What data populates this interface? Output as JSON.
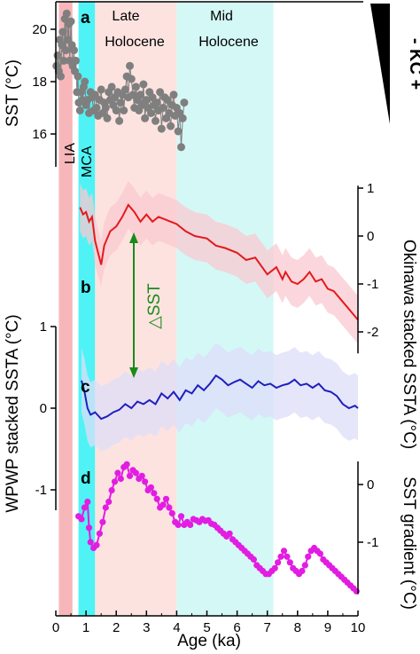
{
  "chart_data": {
    "type": "line",
    "x_axis": {
      "label": "Age (ka)",
      "range": [
        0,
        10
      ],
      "ticks": [
        0,
        1,
        2,
        3,
        4,
        5,
        6,
        7,
        8,
        9,
        10
      ]
    },
    "shaded_periods": [
      {
        "label": "LIA",
        "range": [
          0.1,
          0.55
        ],
        "color": "#f7b7ba"
      },
      {
        "label": "MCA",
        "range": [
          0.75,
          1.3
        ],
        "color": "#4ff3f6"
      },
      {
        "label": "Late Holocene",
        "range": [
          1.3,
          4.0
        ],
        "color": "#fde3e0"
      },
      {
        "label": "Mid Holocene",
        "range": [
          4.0,
          7.2
        ],
        "color": "#d4f8f6"
      }
    ],
    "period_labels": {
      "lia": "LIA",
      "mca": "MCA",
      "late_1": "Late",
      "late_2": "Holocene",
      "mid_1": "Mid",
      "mid_2": "Holocene"
    },
    "annotations": {
      "delta_sst": "△SST",
      "kc": "- KC +"
    },
    "panels": [
      {
        "id": "a",
        "label": "a",
        "type": "scatter",
        "ylabel": "SST (°C)",
        "ylim": [
          15,
          21
        ],
        "yticks": [
          16,
          18,
          20
        ],
        "color": "#7f7f7f",
        "x": [
          0.02,
          0.06,
          0.1,
          0.13,
          0.16,
          0.2,
          0.23,
          0.26,
          0.3,
          0.33,
          0.36,
          0.4,
          0.43,
          0.46,
          0.5,
          0.53,
          0.56,
          0.6,
          0.63,
          0.66,
          0.7,
          0.73,
          0.76,
          0.8,
          0.84,
          0.88,
          0.92,
          0.96,
          1.0,
          1.05,
          1.1,
          1.15,
          1.2,
          1.25,
          1.3,
          1.35,
          1.4,
          1.45,
          1.5,
          1.55,
          1.6,
          1.65,
          1.7,
          1.75,
          1.8,
          1.85,
          1.9,
          1.95,
          2.0,
          2.05,
          2.1,
          2.15,
          2.2,
          2.25,
          2.3,
          2.35,
          2.4,
          2.45,
          2.5,
          2.55,
          2.6,
          2.65,
          2.7,
          2.75,
          2.8,
          2.85,
          2.9,
          2.95,
          3.0,
          3.05,
          3.1,
          3.15,
          3.2,
          3.25,
          3.3,
          3.35,
          3.4,
          3.45,
          3.5,
          3.55,
          3.6,
          3.65,
          3.7,
          3.75,
          3.8,
          3.85,
          3.9,
          3.95,
          4.0,
          4.05,
          4.1,
          4.15,
          4.2,
          4.25
        ],
        "y": [
          18.6,
          19.0,
          18.4,
          19.6,
          18.2,
          19.4,
          19.9,
          18.8,
          20.4,
          19.2,
          20.6,
          19.6,
          20.2,
          18.8,
          20.3,
          19.4,
          18.6,
          19.2,
          18.4,
          18.8,
          17.6,
          18.2,
          17.2,
          16.9,
          17.6,
          17.3,
          17.8,
          18.0,
          17.1,
          17.3,
          16.8,
          17.6,
          17.4,
          16.9,
          17.5,
          17.0,
          16.7,
          17.3,
          17.7,
          16.8,
          17.2,
          17.0,
          16.6,
          17.6,
          17.3,
          17.8,
          17.1,
          17.4,
          16.9,
          17.6,
          16.5,
          17.2,
          17.5,
          16.9,
          17.7,
          18.2,
          17.4,
          18.6,
          18.1,
          17.5,
          17.0,
          17.8,
          17.3,
          16.9,
          17.5,
          17.1,
          17.9,
          16.6,
          17.3,
          17.0,
          17.6,
          16.8,
          17.4,
          17.1,
          16.5,
          17.2,
          16.9,
          17.6,
          16.2,
          17.0,
          17.4,
          16.6,
          17.3,
          16.8,
          16.3,
          17.1,
          17.5,
          16.7,
          17.0,
          16.1,
          16.8,
          15.5,
          16.6,
          17.2
        ]
      },
      {
        "id": "b",
        "label": "b",
        "type": "line",
        "ylabel": "Okinawa stacked SSTA (°C)",
        "ylim": [
          -2.45,
          1.05
        ],
        "yticks": [
          -2,
          -1,
          0,
          1
        ],
        "color": "#e41a1c",
        "band_color": "#f9cad2",
        "x": [
          0.8,
          0.9,
          1.0,
          1.1,
          1.2,
          1.3,
          1.4,
          1.5,
          1.6,
          1.8,
          2.0,
          2.2,
          2.4,
          2.6,
          2.8,
          3.0,
          3.2,
          3.4,
          3.6,
          3.8,
          4.0,
          4.3,
          4.6,
          5.0,
          5.3,
          5.6,
          6.0,
          6.3,
          6.6,
          7.0,
          7.3,
          7.5,
          7.6,
          7.8,
          8.0,
          8.2,
          8.4,
          8.6,
          8.8,
          9.0,
          9.2,
          9.4,
          9.6,
          9.8,
          10.0
        ],
        "y": [
          0.6,
          0.45,
          0.5,
          0.3,
          0.4,
          -0.1,
          -0.35,
          -0.6,
          -0.2,
          0.1,
          0.2,
          0.4,
          0.65,
          0.5,
          0.3,
          0.45,
          0.3,
          0.4,
          0.35,
          0.3,
          0.25,
          0.1,
          0.0,
          -0.05,
          -0.2,
          -0.25,
          -0.35,
          -0.5,
          -0.45,
          -0.8,
          -0.65,
          -0.9,
          -0.75,
          -0.95,
          -1.0,
          -0.9,
          -0.75,
          -0.95,
          -0.9,
          -1.1,
          -1.15,
          -1.3,
          -1.45,
          -1.6,
          -1.75
        ],
        "band_lower": [
          0.1,
          -0.05,
          0.0,
          -0.2,
          -0.1,
          -0.6,
          -0.85,
          -1.05,
          -0.7,
          -0.4,
          -0.3,
          -0.1,
          0.15,
          0.0,
          -0.2,
          -0.05,
          -0.2,
          -0.1,
          -0.15,
          -0.2,
          -0.25,
          -0.4,
          -0.5,
          -0.55,
          -0.7,
          -0.75,
          -0.85,
          -1.0,
          -0.95,
          -1.3,
          -1.15,
          -1.4,
          -1.25,
          -1.45,
          -1.5,
          -1.4,
          -1.25,
          -1.45,
          -1.4,
          -1.6,
          -1.65,
          -1.8,
          -1.95,
          -2.1,
          -2.25
        ],
        "band_upper": [
          1.1,
          0.95,
          1.0,
          0.8,
          0.9,
          0.4,
          0.15,
          -0.1,
          0.3,
          0.6,
          0.7,
          0.9,
          1.15,
          1.0,
          0.8,
          0.95,
          0.8,
          0.9,
          0.85,
          0.8,
          0.75,
          0.6,
          0.5,
          0.45,
          0.3,
          0.25,
          0.15,
          0.0,
          0.05,
          -0.3,
          -0.15,
          -0.4,
          -0.25,
          -0.45,
          -0.5,
          -0.4,
          -0.25,
          -0.45,
          -0.4,
          -0.6,
          -0.65,
          -0.8,
          -0.95,
          -1.1,
          -1.25
        ]
      },
      {
        "id": "c",
        "label": "c",
        "type": "line",
        "ylabel": "WPWP stacked SSTA (°C)",
        "ylim": [
          -1.25,
          1.0
        ],
        "yticks": [
          -1,
          0,
          1
        ],
        "color": "#1f1fbf",
        "band_color": "#ddddf8",
        "x": [
          0.85,
          0.95,
          1.05,
          1.15,
          1.3,
          1.5,
          1.7,
          1.9,
          2.1,
          2.3,
          2.5,
          2.7,
          2.9,
          3.1,
          3.3,
          3.5,
          3.7,
          3.9,
          4.1,
          4.3,
          4.5,
          4.7,
          4.9,
          5.1,
          5.3,
          5.5,
          5.7,
          5.9,
          6.1,
          6.3,
          6.5,
          6.7,
          6.9,
          7.1,
          7.3,
          7.5,
          7.7,
          7.9,
          8.1,
          8.3,
          8.5,
          8.7,
          8.9,
          9.1,
          9.3,
          9.5,
          9.7,
          9.9,
          10.0
        ],
        "y": [
          0.34,
          0.2,
          0.0,
          -0.08,
          -0.05,
          -0.13,
          -0.1,
          -0.05,
          -0.02,
          0.05,
          0.0,
          0.08,
          0.05,
          0.1,
          0.05,
          0.18,
          0.12,
          0.2,
          0.1,
          0.22,
          0.18,
          0.28,
          0.22,
          0.3,
          0.4,
          0.35,
          0.28,
          0.32,
          0.35,
          0.3,
          0.25,
          0.33,
          0.28,
          0.3,
          0.25,
          0.28,
          0.3,
          0.35,
          0.28,
          0.3,
          0.25,
          0.3,
          0.22,
          0.2,
          0.15,
          0.05,
          0.0,
          0.03,
          0.0
        ],
        "band_lower": [
          -0.06,
          -0.2,
          -0.4,
          -0.48,
          -0.45,
          -0.53,
          -0.5,
          -0.45,
          -0.42,
          -0.35,
          -0.4,
          -0.32,
          -0.35,
          -0.3,
          -0.35,
          -0.22,
          -0.28,
          -0.2,
          -0.3,
          -0.18,
          -0.22,
          -0.12,
          -0.18,
          -0.1,
          0.0,
          -0.05,
          -0.12,
          -0.08,
          -0.05,
          -0.1,
          -0.15,
          -0.07,
          -0.12,
          -0.1,
          -0.15,
          -0.12,
          -0.1,
          -0.05,
          -0.12,
          -0.1,
          -0.15,
          -0.1,
          -0.18,
          -0.2,
          -0.25,
          -0.35,
          -0.4,
          -0.37,
          -0.4
        ],
        "band_upper": [
          0.74,
          0.6,
          0.4,
          0.32,
          0.35,
          0.27,
          0.3,
          0.35,
          0.38,
          0.45,
          0.4,
          0.48,
          0.45,
          0.5,
          0.45,
          0.58,
          0.52,
          0.6,
          0.5,
          0.62,
          0.58,
          0.68,
          0.62,
          0.7,
          0.8,
          0.75,
          0.68,
          0.72,
          0.75,
          0.7,
          0.65,
          0.73,
          0.68,
          0.7,
          0.65,
          0.68,
          0.7,
          0.75,
          0.68,
          0.7,
          0.65,
          0.7,
          0.62,
          0.6,
          0.55,
          0.45,
          0.4,
          0.43,
          0.4
        ]
      },
      {
        "id": "d",
        "label": "d",
        "type": "line",
        "ylabel": "SST gradient (°C)",
        "ylim": [
          -1.9,
          0.4
        ],
        "yticks": [
          -1,
          0
        ],
        "color": "#e21de2",
        "x": [
          0.75,
          0.85,
          0.95,
          1.05,
          1.1,
          1.15,
          1.25,
          1.35,
          1.45,
          1.55,
          1.65,
          1.75,
          1.85,
          1.95,
          2.05,
          2.15,
          2.25,
          2.35,
          2.45,
          2.55,
          2.65,
          2.75,
          2.85,
          2.95,
          3.05,
          3.15,
          3.25,
          3.35,
          3.45,
          3.55,
          3.65,
          3.75,
          3.85,
          3.95,
          4.05,
          4.15,
          4.25,
          4.35,
          4.45,
          4.55,
          4.65,
          4.75,
          4.85,
          4.95,
          5.05,
          5.15,
          5.25,
          5.35,
          5.45,
          5.55,
          5.65,
          5.75,
          5.85,
          5.95,
          6.05,
          6.15,
          6.25,
          6.35,
          6.45,
          6.55,
          6.65,
          6.75,
          6.85,
          6.95,
          7.05,
          7.15,
          7.25,
          7.35,
          7.45,
          7.55,
          7.65,
          7.75,
          7.85,
          7.95,
          8.05,
          8.15,
          8.25,
          8.35,
          8.45,
          8.55,
          8.65,
          8.75,
          8.85,
          8.95,
          9.05,
          9.15,
          9.25,
          9.35,
          9.45,
          9.55,
          9.65,
          9.75,
          9.85,
          9.95
        ],
        "y": [
          -0.55,
          -0.6,
          -0.4,
          -0.3,
          -0.75,
          -1.0,
          -1.1,
          -1.05,
          -0.85,
          -0.65,
          -0.4,
          -0.3,
          -0.1,
          0.05,
          0.2,
          0.1,
          0.3,
          0.35,
          0.15,
          0.25,
          0.2,
          0.1,
          0.15,
          0.05,
          -0.1,
          -0.05,
          -0.15,
          -0.25,
          -0.4,
          -0.35,
          -0.25,
          -0.4,
          -0.5,
          -0.65,
          -0.7,
          -0.55,
          -0.7,
          -0.65,
          -0.7,
          -0.6,
          -0.62,
          -0.65,
          -0.6,
          -0.63,
          -0.62,
          -0.68,
          -0.7,
          -0.75,
          -0.8,
          -0.85,
          -0.9,
          -0.85,
          -0.95,
          -1.0,
          -1.05,
          -1.1,
          -1.15,
          -1.2,
          -1.25,
          -1.3,
          -1.4,
          -1.45,
          -1.5,
          -1.55,
          -1.55,
          -1.5,
          -1.45,
          -1.35,
          -1.25,
          -1.15,
          -1.25,
          -1.35,
          -1.45,
          -1.5,
          -1.55,
          -1.5,
          -1.4,
          -1.25,
          -1.15,
          -1.1,
          -1.15,
          -1.2,
          -1.3,
          -1.35,
          -1.4,
          -1.45,
          -1.5,
          -1.55,
          -1.6,
          -1.65,
          -1.7,
          -1.75,
          -1.8,
          -1.85
        ]
      }
    ]
  }
}
